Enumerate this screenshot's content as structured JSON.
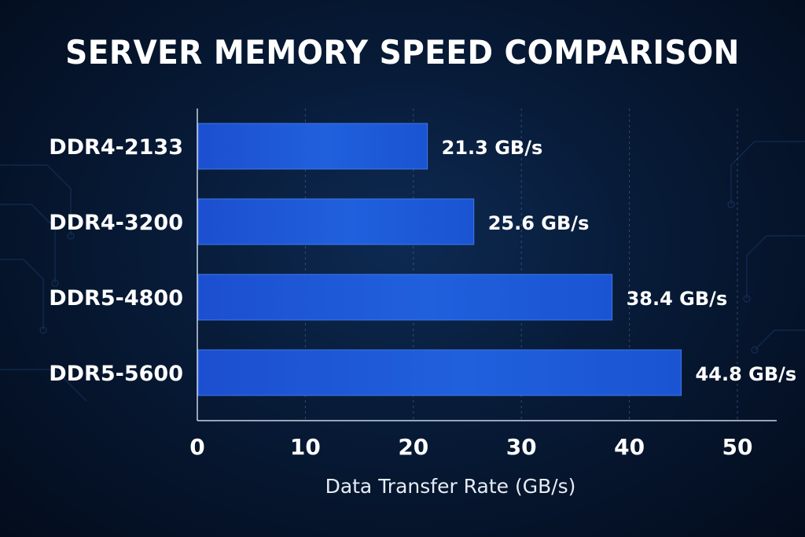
{
  "chart_data": {
    "type": "bar",
    "orientation": "horizontal",
    "title": "SERVER MEMORY SPEED COMPARISON",
    "xlabel": "Data Transfer Rate (GB/s)",
    "ylabel": "",
    "categories": [
      "DDR4-2133",
      "DDR4-3200",
      "DDR5-4800",
      "DDR5-5600"
    ],
    "values": [
      21.3,
      25.6,
      38.4,
      44.8
    ],
    "value_labels": [
      "21.3 GB/s",
      "25.6 GB/s",
      "38.4 GB/s",
      "44.8 GB/s"
    ],
    "xlim": [
      0,
      50
    ],
    "xticks": [
      0,
      10,
      20,
      30,
      40,
      50
    ],
    "grid": "vertical dashed",
    "legend": "none",
    "bar_color": "#1f5ad8",
    "background_color": "#071a36"
  }
}
